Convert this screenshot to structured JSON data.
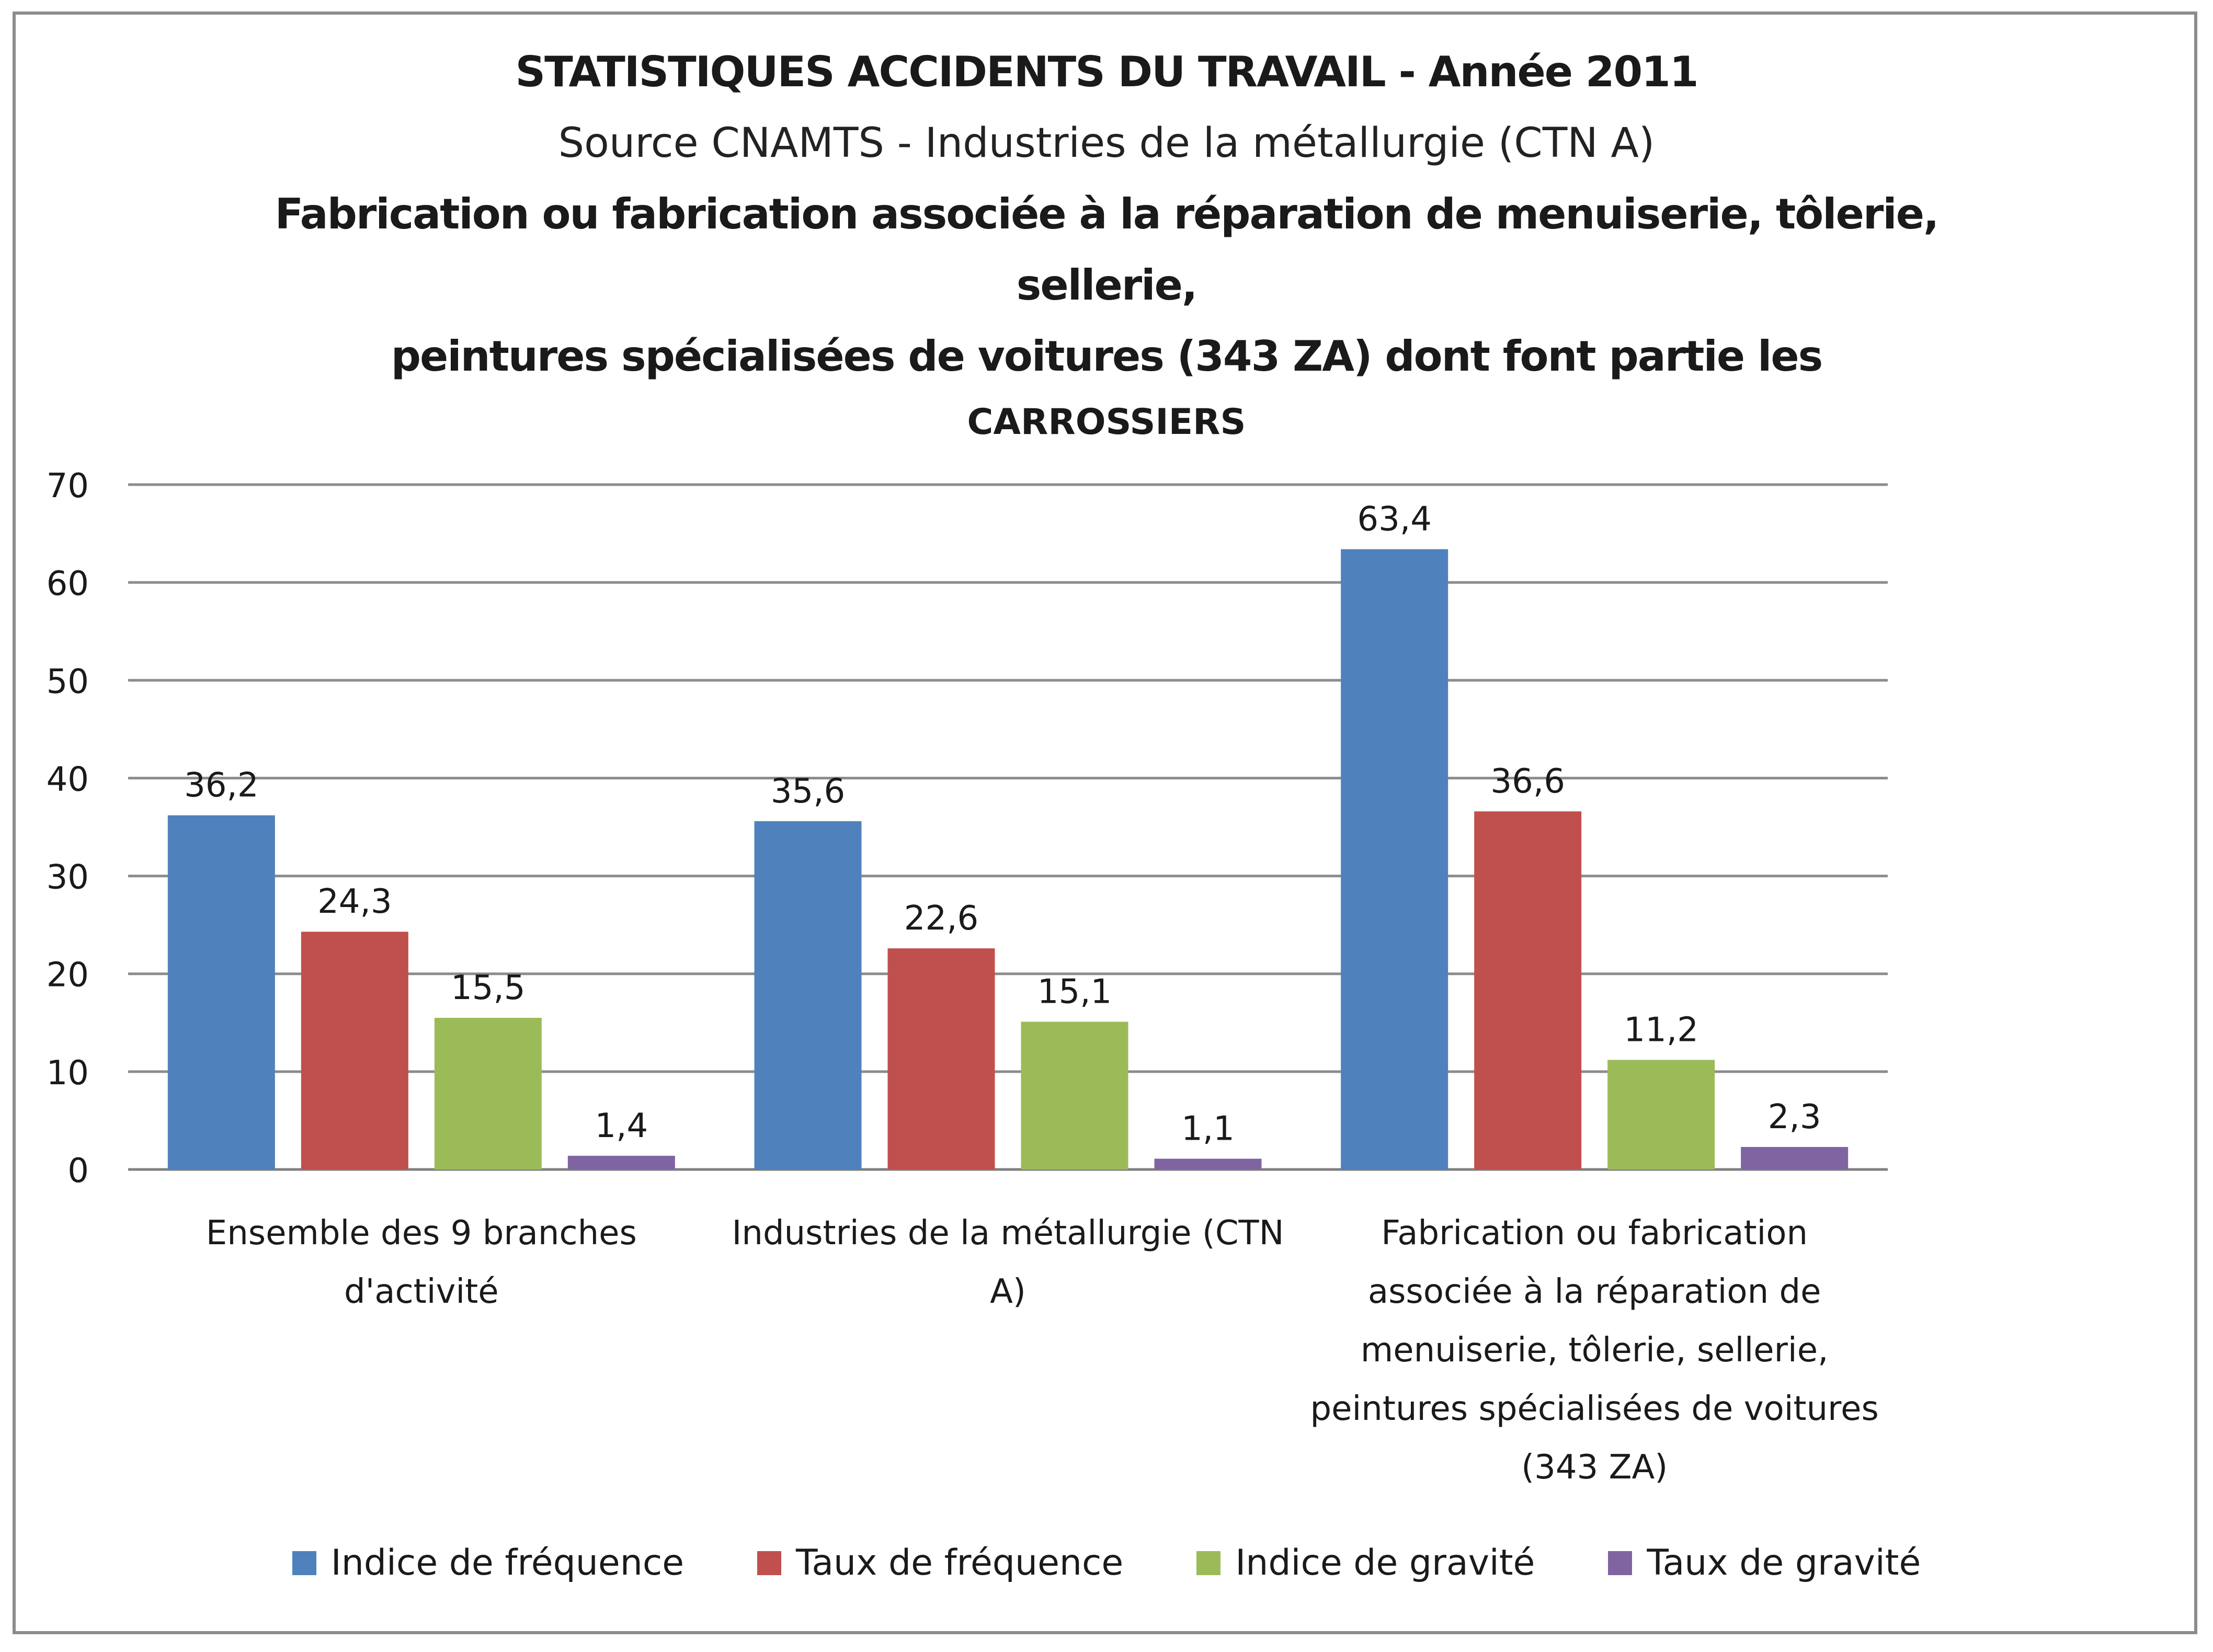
{
  "chart_data": {
    "type": "bar",
    "title": "STATISTIQUES ACCIDENTS DU TRAVAIL - Année 2011",
    "subtitle": "Source CNAMTS - Industries de la métallurgie (CTN A)",
    "subtitle2_line1": "Fabrication ou fabrication associée à la réparation de menuiserie, tôlerie, sellerie,",
    "subtitle2_line2": "peintures spécialisées de voitures (343 ZA) dont font partie les",
    "subtitle3": "CARROSSIERS",
    "categories": [
      [
        "Ensemble des 9 branches",
        "d'activité"
      ],
      [
        "Industries de la métallurgie (CTN",
        "A)"
      ],
      [
        "Fabrication ou fabrication",
        "associée à la réparation de",
        "menuiserie, tôlerie, sellerie,",
        "peintures spécialisées de voitures",
        "(343 ZA)"
      ]
    ],
    "series": [
      {
        "name": "Indice de fréquence",
        "color": "#4f81bd",
        "values": [
          36.2,
          35.6,
          63.4
        ],
        "labels": [
          "36,2",
          "35,6",
          "63,4"
        ]
      },
      {
        "name": "Taux de fréquence",
        "color": "#c0504d",
        "values": [
          24.3,
          22.6,
          36.6
        ],
        "labels": [
          "24,3",
          "22,6",
          "36,6"
        ]
      },
      {
        "name": "Indice de gravité",
        "color": "#9bbb59",
        "values": [
          15.5,
          15.1,
          11.2
        ],
        "labels": [
          "15,5",
          "15,1",
          "11,2"
        ]
      },
      {
        "name": "Taux de gravité",
        "color": "#8064a2",
        "values": [
          1.4,
          1.1,
          2.3
        ],
        "labels": [
          "1,4",
          "1,1",
          "2,3"
        ]
      }
    ],
    "ylim": [
      0,
      70
    ],
    "yticks": [
      0,
      10,
      20,
      30,
      40,
      50,
      60,
      70
    ],
    "grid": true,
    "legend": "bottom",
    "xlabel": "",
    "ylabel": ""
  }
}
